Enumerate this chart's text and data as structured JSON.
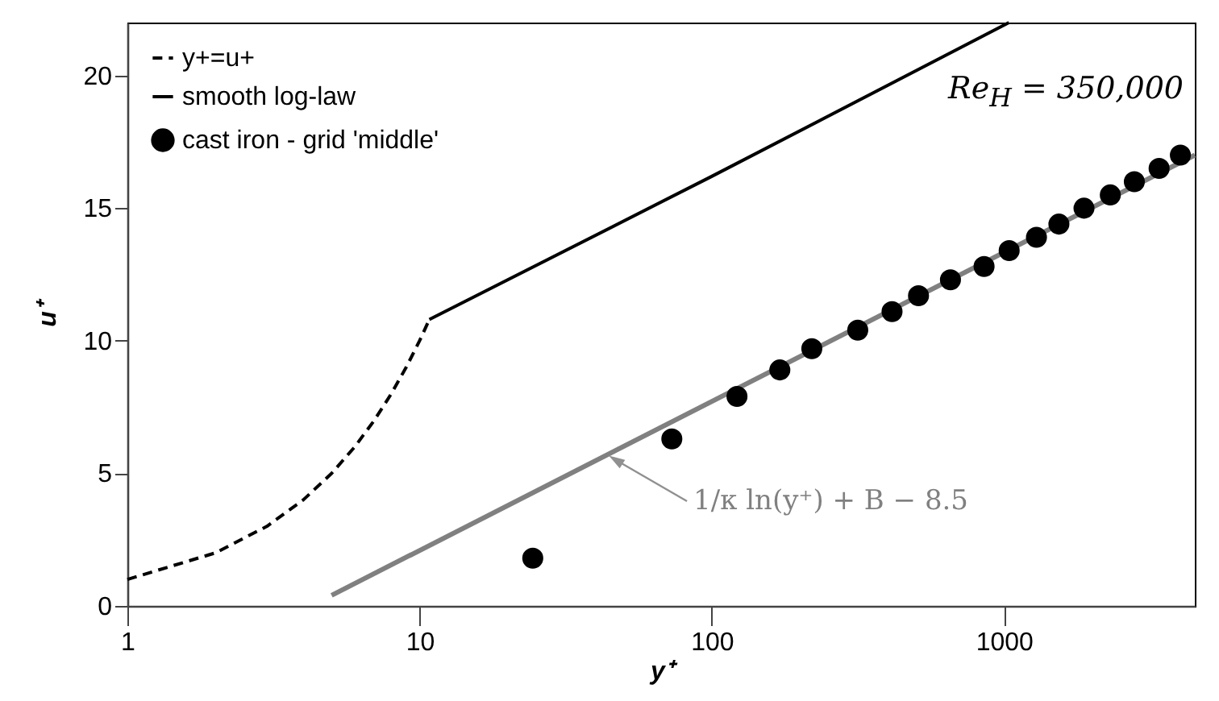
{
  "chart_data": {
    "type": "line",
    "xlabel": "y⁺",
    "ylabel": "u⁺",
    "log": "x",
    "xlim": [
      1,
      4500
    ],
    "xticks": [
      1,
      10,
      100,
      1000
    ],
    "ylim": [
      0,
      22
    ],
    "yticks": [
      0,
      5,
      10,
      15,
      20
    ],
    "grid": false,
    "legend": "top left",
    "series": [
      {
        "name": "y+=u+",
        "type": "line",
        "line_style": "dashed",
        "color": "#000000",
        "x": [
          1,
          2,
          3,
          4,
          5,
          6,
          7,
          8,
          9,
          10,
          10.8
        ],
        "values": [
          1,
          2,
          3,
          4,
          5,
          6,
          7,
          8,
          9,
          10,
          10.8
        ]
      },
      {
        "name": "smooth log-law",
        "type": "line",
        "line_style": "solid",
        "color": "#000000",
        "x": [
          10.8,
          100,
          1040
        ],
        "values": [
          10.8,
          16.2,
          22
        ]
      },
      {
        "name": "cast iron - grid 'middle'",
        "type": "scatter",
        "marker": "circle",
        "color": "#000000",
        "x": [
          24.4,
          73,
          122,
          171,
          220,
          316,
          414,
          510,
          656,
          855,
          1042,
          1292,
          1542,
          1879,
          2312,
          2794,
          3396,
          4016
        ],
        "values": [
          1.8,
          6.3,
          7.9,
          8.9,
          9.7,
          10.4,
          11.1,
          11.7,
          12.3,
          12.8,
          13.4,
          13.9,
          14.4,
          15.0,
          15.5,
          16.0,
          16.5,
          17.0
        ]
      },
      {
        "type": "line",
        "line_style": "solid",
        "color": "#808080",
        "x": [
          5,
          4500
        ],
        "values": [
          0.4,
          17.0
        ]
      }
    ],
    "annotations": [
      "Re$_{H}$ = 350,000",
      {
        "text": "1/κ ln(y⁺) + B − 8.5",
        "x": 47,
        "y": 5.5
      }
    ]
  }
}
